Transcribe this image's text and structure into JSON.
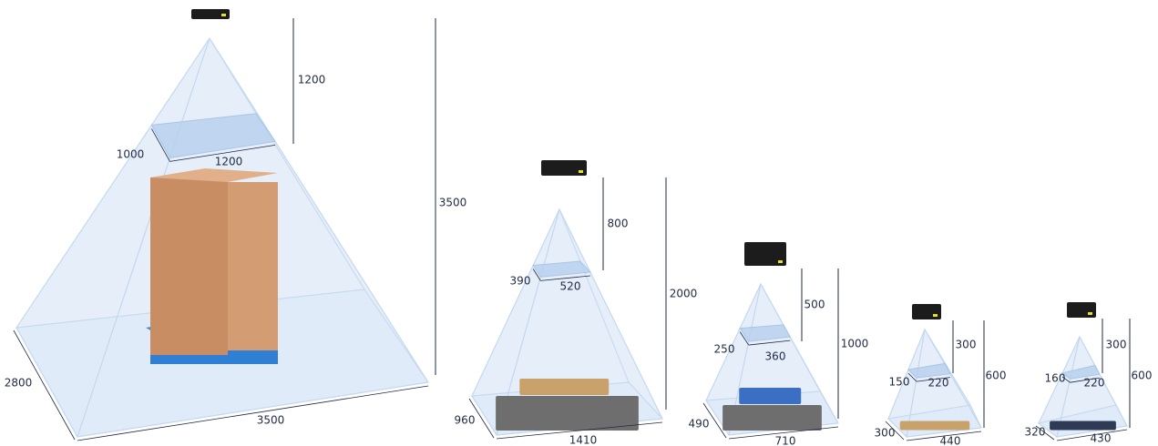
{
  "cameras": [
    {
      "near_distance": 1200,
      "near_depth": 1000,
      "near_width": 1200,
      "far_distance": 3500,
      "far_depth": 2800,
      "far_width": 3500
    },
    {
      "near_distance": 800,
      "near_depth": 390,
      "near_width": 520,
      "far_distance": 2000,
      "far_depth": 960,
      "far_width": 1410
    },
    {
      "near_distance": 500,
      "near_depth": 250,
      "near_width": 360,
      "far_distance": 1000,
      "far_depth": 490,
      "far_width": 710
    },
    {
      "near_distance": 300,
      "near_depth": 150,
      "near_width": 220,
      "far_distance": 600,
      "far_depth": 300,
      "far_width": 440
    },
    {
      "near_distance": 300,
      "near_depth": 160,
      "near_width": 220,
      "far_distance": 600,
      "far_depth": 320,
      "far_width": 430
    }
  ]
}
